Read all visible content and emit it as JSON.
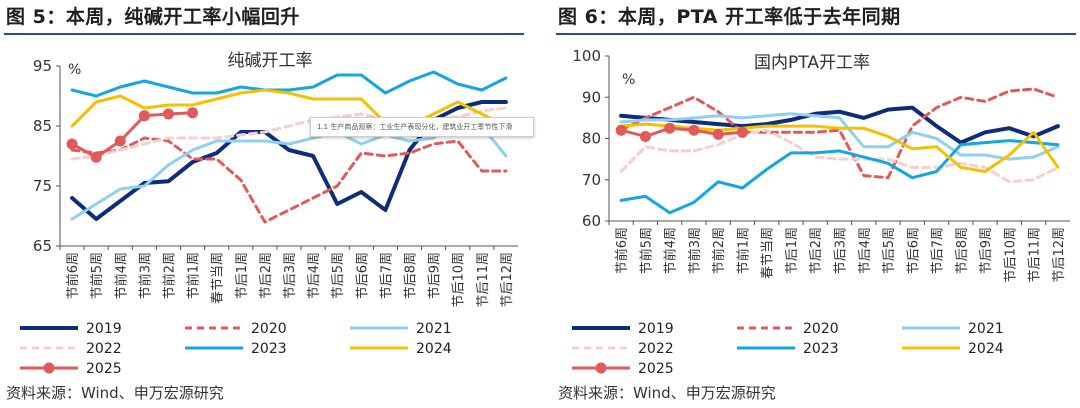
{
  "colors": {
    "2019": "#0d2d7a",
    "2020": "#e05a5a",
    "2021": "#8fd0f0",
    "2022": "#f7cfcf",
    "2023": "#14a6df",
    "2024": "#f5c000",
    "2025": "#e05a5a",
    "title_rule": "#1f4e9c",
    "axis": "#555555"
  },
  "tooltip_text": "1.1 生产商品观察：工业生产表现分化，建筑业开工季节性下滑",
  "chart_data": [
    {
      "type": "line",
      "figure_title": "图 5：本周，纯碱开工率小幅回升",
      "title": "纯碱开工率",
      "unit_label": "%",
      "ylim": [
        65,
        95
      ],
      "yticks": [
        65,
        75,
        85,
        95
      ],
      "categories": [
        "节前6周",
        "节前5周",
        "节前4周",
        "节前3周",
        "节前2周",
        "节前1周",
        "春节当周",
        "节后1周",
        "节后2周",
        "节后3周",
        "节后4周",
        "节后5周",
        "节后6周",
        "节后7周",
        "节后8周",
        "节后9周",
        "节后10周",
        "节后11周",
        "节后12周"
      ],
      "series": [
        {
          "name": "2019",
          "values": [
            73,
            69.5,
            72.5,
            75.5,
            75.8,
            79,
            80.5,
            84,
            84,
            81,
            80,
            72,
            74,
            71,
            81,
            86,
            88,
            89,
            89
          ]
        },
        {
          "name": "2020",
          "values": [
            81,
            80.5,
            81,
            83,
            82.5,
            79.5,
            79.5,
            76,
            69,
            71,
            73,
            75,
            80.5,
            80,
            80.5,
            82,
            82.5,
            77.5,
            77.5
          ]
        },
        {
          "name": "2021",
          "values": [
            69.5,
            72,
            74.5,
            75,
            78.5,
            81,
            82.5,
            82.5,
            82.5,
            82,
            83,
            84,
            82,
            83.5,
            82.5,
            83,
            86,
            85,
            80
          ]
        },
        {
          "name": "2022",
          "values": [
            79.5,
            80,
            81,
            82,
            83,
            83,
            83,
            83.5,
            84,
            85,
            86,
            86.5,
            87,
            86,
            86,
            86,
            86.5,
            87.5,
            88
          ]
        },
        {
          "name": "2023",
          "values": [
            91,
            90,
            91.5,
            92.5,
            91.5,
            90.5,
            90.5,
            91.5,
            91,
            91,
            91.5,
            93.5,
            93.5,
            90.5,
            92.5,
            94,
            92,
            91,
            93
          ]
        },
        {
          "name": "2024",
          "values": [
            85,
            89,
            90,
            88,
            88.5,
            88.5,
            89.5,
            90.5,
            91,
            90.5,
            89.5,
            89.5,
            89.5,
            85.5,
            85,
            87,
            89,
            87,
            85
          ]
        },
        {
          "name": "2025",
          "values": [
            82,
            79.8,
            82.5,
            86.7,
            87,
            87.2,
            null,
            null,
            null,
            null,
            null,
            null,
            null,
            null,
            null,
            null,
            null,
            null,
            null
          ]
        }
      ],
      "legend": [
        "2019",
        "2020",
        "2021",
        "2022",
        "2023",
        "2024",
        "2025"
      ],
      "source": "资料来源：Wind、申万宏源研究"
    },
    {
      "type": "line",
      "figure_title": "图 6：本周，PTA 开工率低于去年同期",
      "title": "国内PTA开工率",
      "unit_label": "%",
      "ylim": [
        60,
        100
      ],
      "yticks": [
        60,
        70,
        80,
        90,
        100
      ],
      "categories": [
        "节前6周",
        "节前5周",
        "节前4周",
        "节前3周",
        "节前2周",
        "节前1周",
        "春节当周",
        "节后1周",
        "节后2周",
        "节后3周",
        "节后4周",
        "节后5周",
        "节后6周",
        "节后7周",
        "节后8周",
        "节后9周",
        "节后10周",
        "节后11周",
        "节后12周"
      ],
      "series": [
        {
          "name": "2019",
          "values": [
            85.5,
            85,
            84.5,
            84,
            83.5,
            83,
            83.5,
            84.5,
            86,
            86.5,
            85,
            87,
            87.5,
            83,
            79,
            81.5,
            82.5,
            80.5,
            83
          ]
        },
        {
          "name": "2020",
          "values": [
            82,
            85,
            87.5,
            90,
            86.5,
            81.5,
            81.5,
            81.5,
            81.5,
            82,
            71,
            70.5,
            83,
            87.5,
            90,
            89,
            91.5,
            92,
            90
          ]
        },
        {
          "name": "2021",
          "values": [
            84,
            84.5,
            84.5,
            85,
            85.5,
            85,
            85.5,
            86,
            85.5,
            85,
            78,
            78,
            81.5,
            80,
            76,
            76,
            75,
            75.5,
            78
          ]
        },
        {
          "name": "2022",
          "values": [
            72,
            78,
            77,
            77,
            78.5,
            81,
            82,
            79,
            75.5,
            75,
            75,
            75,
            73,
            73,
            74,
            73,
            69.5,
            70,
            73
          ]
        },
        {
          "name": "2023",
          "values": [
            65,
            66,
            62,
            64.5,
            69.5,
            68,
            72.5,
            76.5,
            76.5,
            77,
            75.5,
            74,
            70.5,
            72,
            78.5,
            79,
            79.5,
            79,
            78.5
          ]
        },
        {
          "name": "2024",
          "values": [
            83,
            83.5,
            83,
            82.5,
            82,
            82.5,
            83,
            83,
            83,
            82.5,
            82.5,
            80.5,
            77.5,
            78,
            73,
            72,
            76,
            81.5,
            73
          ]
        },
        {
          "name": "2025",
          "values": [
            82,
            80.5,
            82.5,
            82,
            81,
            81.5,
            null,
            null,
            null,
            null,
            null,
            null,
            null,
            null,
            null,
            null,
            null,
            null,
            null
          ]
        }
      ],
      "legend": [
        "2019",
        "2020",
        "2021",
        "2022",
        "2023",
        "2024",
        "2025"
      ],
      "source": "资料来源：Wind、申万宏源研究"
    }
  ]
}
